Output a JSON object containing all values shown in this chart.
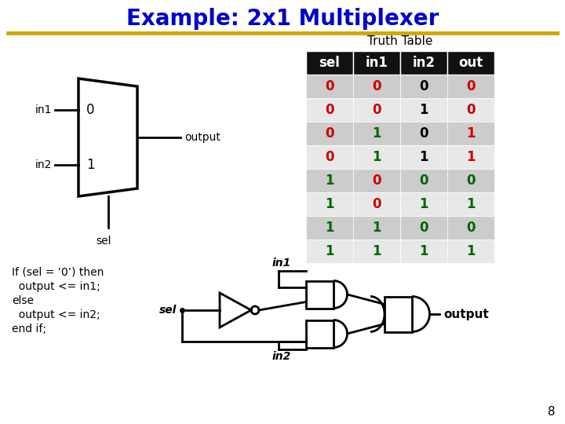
{
  "title": "Example: 2x1 Multiplexer",
  "title_color": "#0000cc",
  "title_fontsize": 20,
  "separator_color": "#ccaa00",
  "bg_color": "#ffffff",
  "truth_table": {
    "headers": [
      "sel",
      "in1",
      "in2",
      "out"
    ],
    "header_bg": "#111111",
    "header_fg": "#ffffff",
    "rows": [
      [
        "0",
        "0",
        "0",
        "0"
      ],
      [
        "0",
        "0",
        "1",
        "0"
      ],
      [
        "0",
        "1",
        "0",
        "1"
      ],
      [
        "0",
        "1",
        "1",
        "1"
      ],
      [
        "1",
        "0",
        "0",
        "0"
      ],
      [
        "1",
        "0",
        "1",
        "1"
      ],
      [
        "1",
        "1",
        "0",
        "0"
      ],
      [
        "1",
        "1",
        "1",
        "1"
      ]
    ],
    "row_bg_odd": "#cccccc",
    "row_bg_even": "#e8e8e8",
    "sel_0_color": "#cc0000",
    "sel_1_color": "#006600",
    "in1_0_color": "#cc0000",
    "in1_1_color": "#006600",
    "in2_colors": [
      "#000000",
      "#000000",
      "#000000",
      "#000000",
      "#006600",
      "#006600",
      "#006600",
      "#006600"
    ],
    "out_colors": [
      "#cc0000",
      "#cc0000",
      "#cc0000",
      "#cc0000",
      "#006600",
      "#006600",
      "#006600",
      "#006600"
    ]
  },
  "code_lines": [
    "If (sel = ‘0’) then",
    "  output <= in1;",
    "else",
    "  output <= in2;",
    "end if;"
  ],
  "page_number": "8"
}
